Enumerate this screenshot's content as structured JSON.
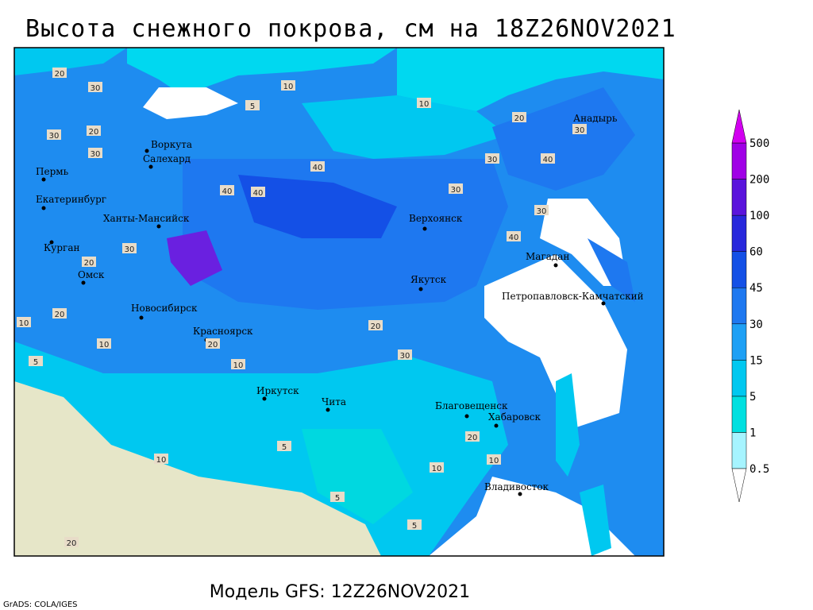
{
  "header": {
    "title": "Высота снежного покрова, см на 18Z26NOV2021"
  },
  "cities": [
    "Воркута",
    "Салехард",
    "Пермь",
    "Екатеринбург",
    "Ханты-Мансийск",
    "Курган",
    "Омск",
    "Новосибирск",
    "Красноярск",
    "Иркутск",
    "Чита",
    "Верхоянск",
    "Якутск",
    "Магадан",
    "Петропавловск-Камчатский",
    "Анадырь",
    "Благовещенск",
    "Хабаровск",
    "Владивосток"
  ],
  "contour_labels": [
    20,
    30,
    30,
    20,
    30,
    40,
    40,
    40,
    10,
    5,
    10,
    20,
    30,
    30,
    40,
    30,
    40,
    20,
    30,
    20,
    10,
    5,
    10,
    20,
    10,
    5,
    10,
    5,
    30,
    30,
    20,
    20,
    10,
    10,
    5,
    20
  ],
  "legend": {
    "levels": [
      0.5,
      1,
      5,
      15,
      30,
      45,
      60,
      100,
      200,
      500
    ],
    "colors": [
      "#a6f4ff",
      "#00e0e0",
      "#00c8f0",
      "#1ea0f5",
      "#1e78f0",
      "#1450e6",
      "#2828dc",
      "#5a14dc",
      "#a000e6"
    ],
    "under_color": "#ffffff",
    "over_color": "#d200f0"
  },
  "footer": {
    "model": "Модель GFS: 12Z26NOV2021",
    "credit": "GrADS: COLA/IGES"
  }
}
